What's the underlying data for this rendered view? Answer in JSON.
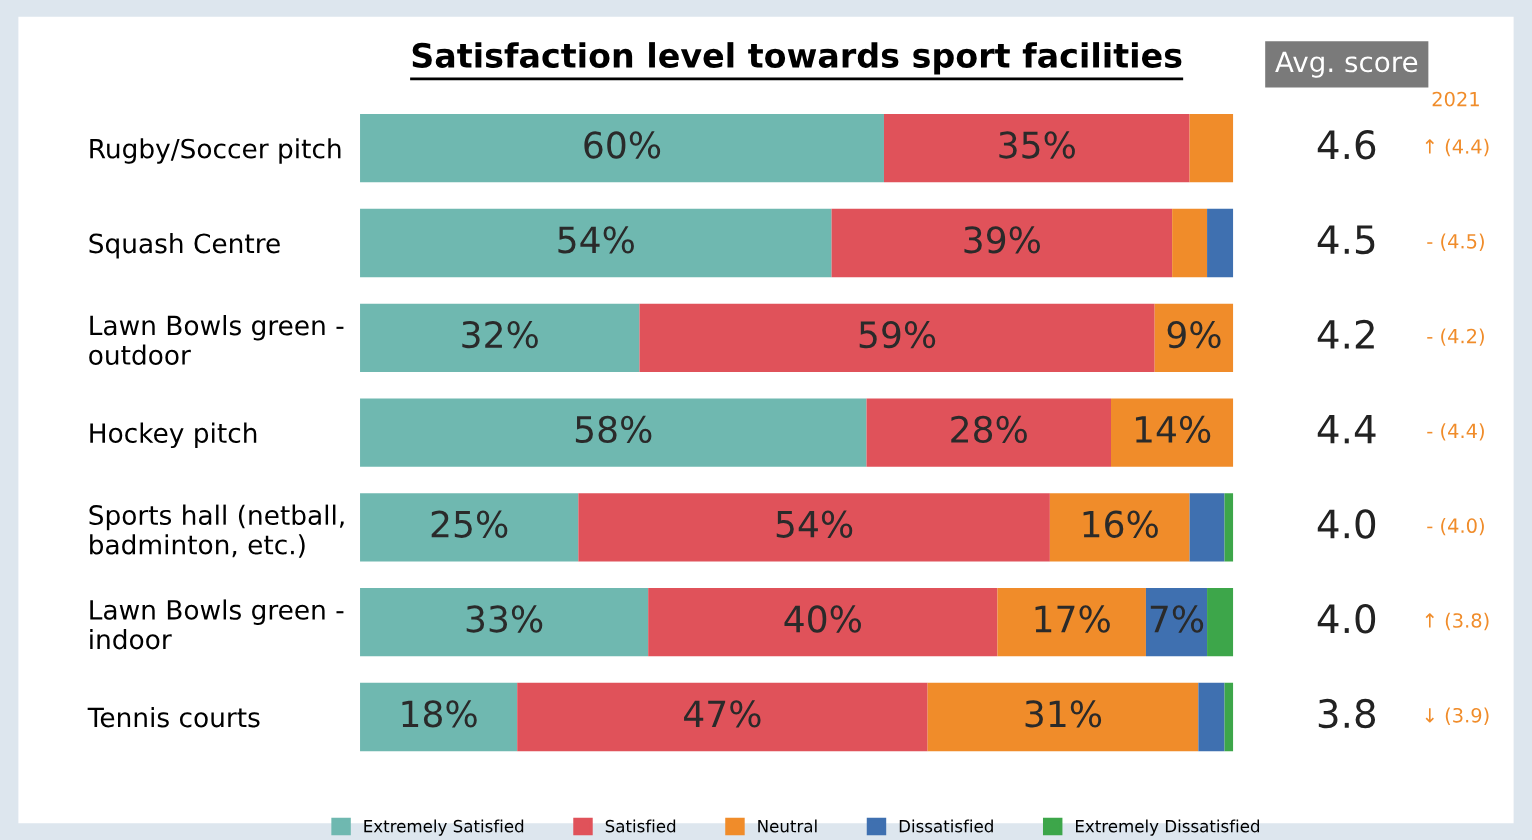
{
  "chart_data": {
    "type": "bar",
    "orientation": "horizontal",
    "stacked": true,
    "tick_labels": "y",
    "title": "Satisfaction level towards sport facilities",
    "categories": [
      "Rugby/Soccer pitch",
      "Squash Centre",
      "Lawn Bowls green -\noutdoor",
      "Hockey pitch",
      "Sports hall (netball,\nbadminton, etc.)",
      "Lawn Bowls green -\nindoor",
      "Tennis courts"
    ],
    "series": [
      {
        "name": "Extremely Satisfied",
        "color": "#6fb8b0",
        "values": [
          60,
          54,
          32,
          58,
          25,
          33,
          18
        ],
        "value_labels": [
          "60%",
          "54%",
          "32%",
          "58%",
          "25%",
          "33%",
          "18%"
        ]
      },
      {
        "name": "Satisfied",
        "color": "#e0525a",
        "values": [
          35,
          39,
          59,
          28,
          54,
          40,
          47
        ],
        "value_labels": [
          "35%",
          "39%",
          "59%",
          "28%",
          "54%",
          "40%",
          "47%"
        ]
      },
      {
        "name": "Neutral",
        "color": "#f08c2a",
        "values": [
          5,
          4,
          9,
          14,
          16,
          17,
          31
        ],
        "value_labels": [
          null,
          null,
          "9%",
          "14%",
          "16%",
          "17%",
          "31%"
        ]
      },
      {
        "name": "Dissatisfied",
        "color": "#3f70b0",
        "values": [
          0,
          3,
          0,
          0,
          4,
          7,
          3
        ],
        "value_labels": [
          null,
          null,
          null,
          null,
          null,
          "7%",
          null
        ]
      },
      {
        "name": "Extremely Dissatisfied",
        "color": "#3da64a",
        "values": [
          0,
          0,
          0,
          0,
          1,
          3,
          1
        ],
        "value_labels": [
          null,
          null,
          null,
          null,
          null,
          null,
          null
        ]
      }
    ],
    "annotations": [
      "Avg. score",
      "2021",
      "4.6",
      "↑ (4.4)",
      "4.5",
      "- (4.5)",
      "4.2",
      "- (4.2)",
      "4.4",
      "- (4.4)",
      "4.0",
      "- (4.0)",
      "4.0",
      "↑ (3.8)",
      "3.8",
      "↓ (3.9)"
    ],
    "legend": "bottom",
    "grid": false
  }
}
